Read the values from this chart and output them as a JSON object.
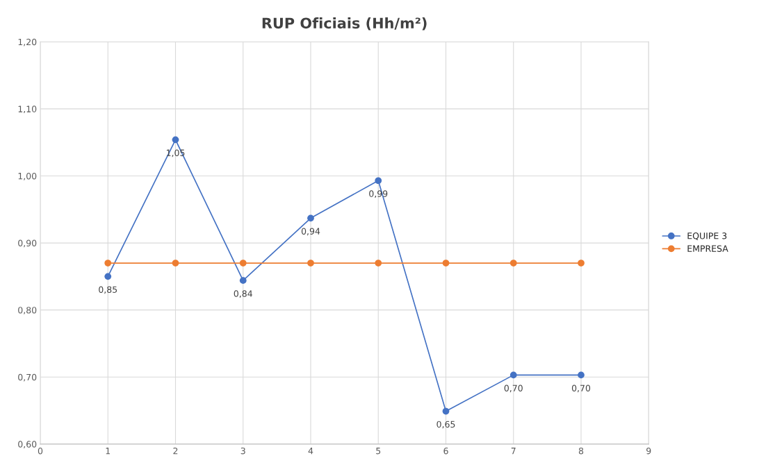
{
  "chart_data": {
    "type": "line",
    "title": "RUP Oficiais (Hh/m²)",
    "x": [
      1,
      2,
      3,
      4,
      5,
      6,
      7,
      8
    ],
    "series": [
      {
        "name": "EQUIPE 3",
        "color": "#4472c4",
        "values": [
          0.85,
          1.054,
          0.844,
          0.937,
          0.993,
          0.649,
          0.703,
          0.703
        ],
        "value_labels": [
          "0,85",
          "1,05",
          "0,84",
          "0,94",
          "0,99",
          "0,65",
          "0,70",
          "0,70"
        ]
      },
      {
        "name": "EMPRESA",
        "color": "#ed7d31",
        "values": [
          0.87,
          0.87,
          0.87,
          0.87,
          0.87,
          0.87,
          0.87,
          0.87
        ]
      }
    ],
    "xlim": [
      0,
      9
    ],
    "xticks": [
      0,
      1,
      2,
      3,
      4,
      5,
      6,
      7,
      8,
      9
    ],
    "ylim": [
      0.6,
      1.2
    ],
    "yticks": [
      {
        "value": 0.6,
        "label": "0,60"
      },
      {
        "value": 0.7,
        "label": "0,70"
      },
      {
        "value": 0.8,
        "label": "0,80"
      },
      {
        "value": 0.9,
        "label": "0,90"
      },
      {
        "value": 1.0,
        "label": "1,00"
      },
      {
        "value": 1.1,
        "label": "1,10"
      },
      {
        "value": 1.2,
        "label": "1,20"
      }
    ],
    "grid": true,
    "legend": "right",
    "marker": "circle",
    "line_style": "solid"
  }
}
